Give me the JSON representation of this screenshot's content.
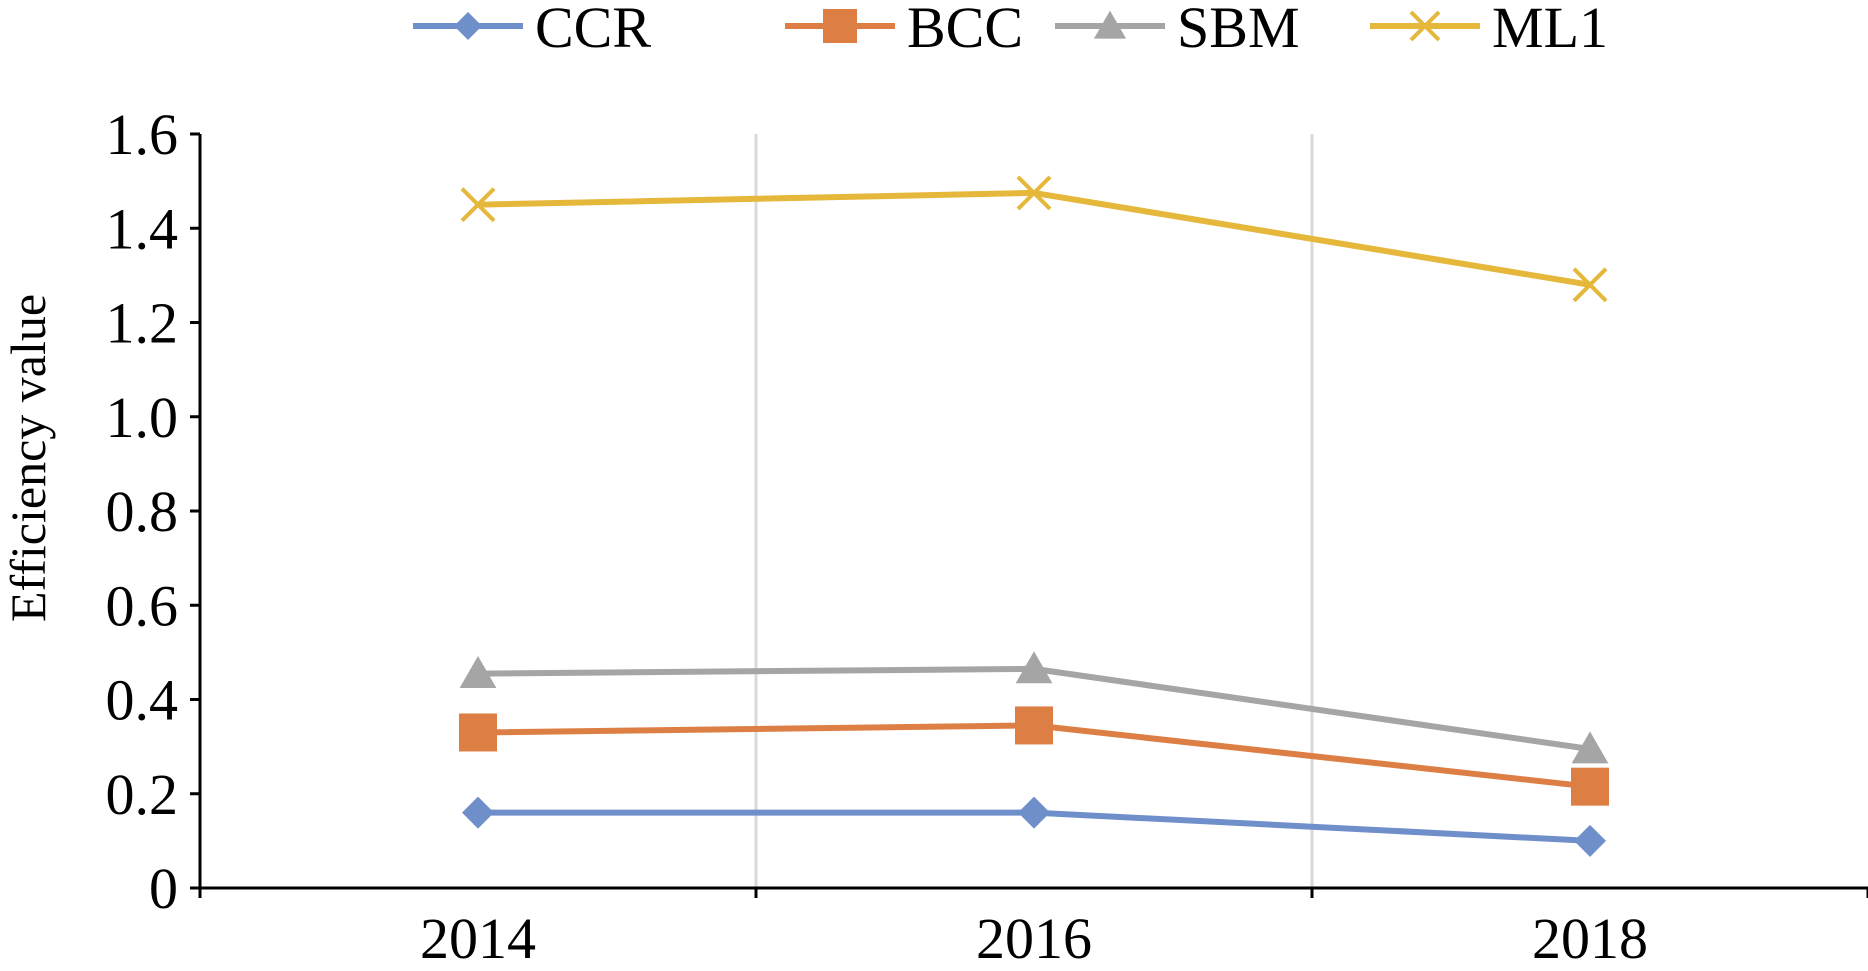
{
  "chart_data": {
    "type": "line",
    "title": "",
    "xlabel": "",
    "ylabel": "Efficiency value",
    "categories": [
      "2014",
      "2016",
      "2018"
    ],
    "ylim": [
      0,
      1.6
    ],
    "y_ticks": [
      "0",
      "0.2",
      "0.4",
      "0.6",
      "0.8",
      "1.0",
      "1.2",
      "1.4",
      "1.6"
    ],
    "y_tick_values": [
      0,
      0.2,
      0.4,
      0.6,
      0.8,
      1.0,
      1.2,
      1.4,
      1.6
    ],
    "grid": "vertical lines between categories",
    "legend_position": "top",
    "series": [
      {
        "name": "CCR",
        "values": [
          0.16,
          0.16,
          0.1
        ],
        "color": "#6F8FCB",
        "marker": "diamond"
      },
      {
        "name": "BCC",
        "values": [
          0.33,
          0.345,
          0.215
        ],
        "color": "#DD7F45",
        "marker": "square"
      },
      {
        "name": "SBM",
        "values": [
          0.455,
          0.465,
          0.295
        ],
        "color": "#A5A5A5",
        "marker": "triangle"
      },
      {
        "name": "ML1",
        "values": [
          1.45,
          1.475,
          1.28
        ],
        "color": "#E5B73A",
        "marker": "x"
      }
    ]
  }
}
